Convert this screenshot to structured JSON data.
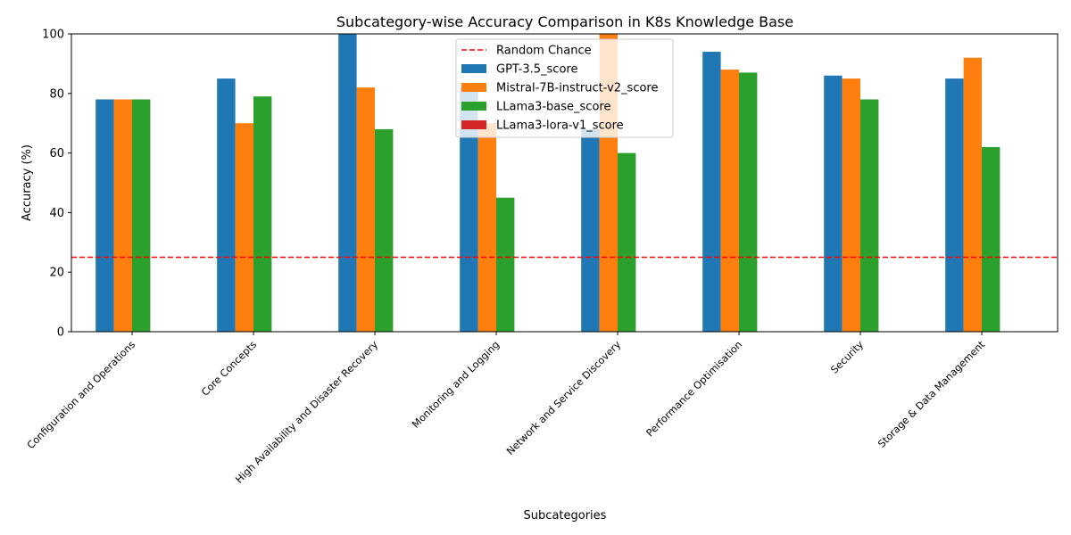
{
  "chart_data": {
    "type": "bar",
    "title": "Subcategory-wise Accuracy Comparison in K8s Knowledge Base",
    "xlabel": "Subcategories",
    "ylabel": "Accuracy (%)",
    "ylim": [
      0,
      100
    ],
    "yticks": [
      0,
      20,
      40,
      60,
      80,
      100
    ],
    "grid": false,
    "legend_position": "top-center",
    "categories": [
      "Configuration and Operations",
      "Core Concepts",
      "High Availability and Disaster Recovery",
      "Monitoring and Logging",
      "Network and Service Discovery",
      "Performance Optimisation",
      "Security",
      "Storage & Data Management"
    ],
    "series": [
      {
        "name": "GPT-3.5_score",
        "color": "#1f77b4",
        "values": [
          78,
          85,
          100,
          82,
          68,
          94,
          86,
          85
        ]
      },
      {
        "name": "Mistral-7B-instruct-v2_score",
        "color": "#ff7f0e",
        "values": [
          78,
          70,
          82,
          70,
          100,
          88,
          85,
          92
        ]
      },
      {
        "name": "LLama3-base_score",
        "color": "#2ca02c",
        "values": [
          78,
          79,
          68,
          45,
          60,
          87,
          78,
          62
        ]
      },
      {
        "name": "LLama3-lora-v1_score",
        "color": "#d62728",
        "values": [
          0,
          0,
          0,
          0,
          0,
          0,
          0,
          0
        ]
      }
    ],
    "reference_line": {
      "name": "Random Chance",
      "value": 25,
      "color": "#ff0000",
      "style": "dashed"
    }
  }
}
